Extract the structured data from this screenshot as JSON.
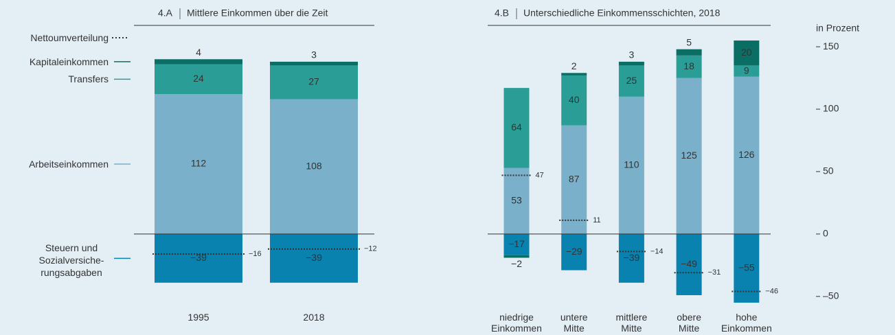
{
  "chart_data": [
    {
      "type": "bar",
      "panel": "4.A",
      "title": "Mittlere Einkommen über die Zeit",
      "categories": [
        "1995",
        "2018"
      ],
      "ylim": [
        -60,
        155
      ],
      "legend": "left",
      "series": [
        {
          "name": "Arbeitseinkommen",
          "color": "#7ab0c9",
          "values": [
            112,
            108
          ]
        },
        {
          "name": "Transfers",
          "color": "#2a9d96",
          "values": [
            24,
            27
          ]
        },
        {
          "name": "Steuern und Sozialversiche-rungsabgaben",
          "color": "#0a82b0",
          "values": [
            -39,
            -39
          ],
          "value_labels": [
            "−39",
            "−39"
          ]
        },
        {
          "name": "Kapitaleinkommen",
          "color": "#0b6e65",
          "values": [
            4,
            3
          ]
        },
        {
          "name": "Nettoumverteilung",
          "type": "line",
          "color": "#333333",
          "values": [
            -16,
            -12
          ],
          "value_labels": [
            "−16",
            "−12"
          ]
        }
      ]
    },
    {
      "type": "bar",
      "panel": "4.B",
      "title": "Unterschiedliche Einkommensschichten, 2018",
      "categories": [
        "niedrige Einkommen",
        "untere Mitte",
        "mittlere Mitte",
        "obere Mitte",
        "hohe Einkommen"
      ],
      "ylim": [
        -60,
        155
      ],
      "yticks": [
        150,
        100,
        50,
        0,
        {
          "value": -50,
          "label": "–50"
        }
      ],
      "y_label": "in Prozent",
      "series": [
        {
          "color": "#7ab0c9",
          "values": [
            53,
            87,
            110,
            125,
            126
          ]
        },
        {
          "color": "#2a9d96",
          "values": [
            64,
            40,
            25,
            18,
            9
          ]
        },
        {
          "color": "#0a82b0",
          "values": [
            -17,
            -29,
            -39,
            -49,
            -55
          ],
          "value_labels": [
            "−17",
            "−29",
            "−39",
            "−49",
            "−55"
          ]
        },
        {
          "color": "#0b6e65",
          "values": [
            -2,
            2,
            3,
            5,
            20
          ],
          "value_labels": [
            "−2",
            "2",
            "3",
            "5",
            "20"
          ]
        },
        {
          "type": "line",
          "color": "#333333",
          "values": [
            47,
            11,
            -14,
            -31,
            -46
          ],
          "value_labels": [
            "47",
            "11",
            "−14",
            "−31",
            "−46"
          ]
        }
      ]
    }
  ]
}
